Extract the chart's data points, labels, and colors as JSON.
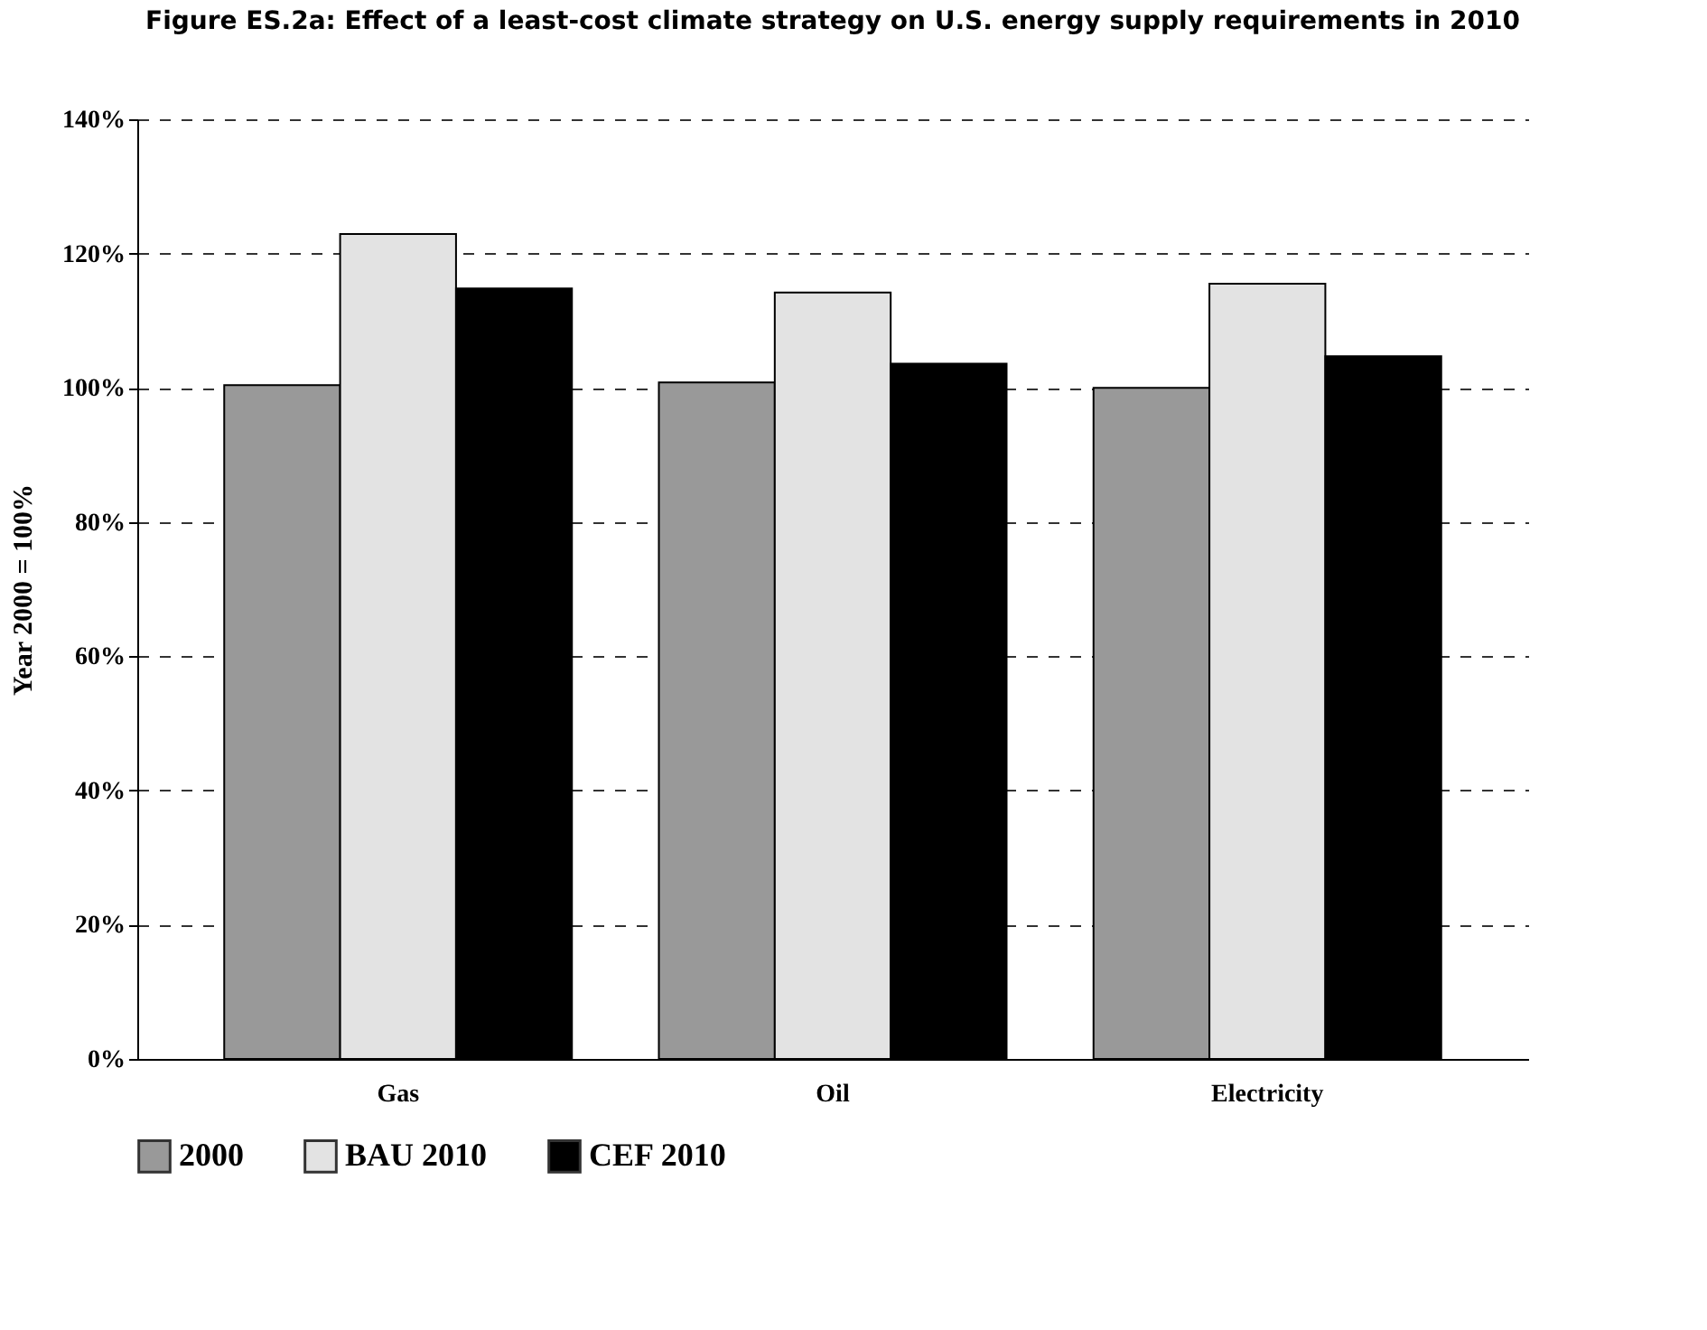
{
  "chart_data": {
    "type": "bar",
    "title": "Figure ES.2a:  Effect of a least-cost climate strategy on U.S. energy supply requirements in 2010",
    "ylabel": "Year 2000 = 100%",
    "categories": [
      "Gas",
      "Oil",
      "Electricity"
    ],
    "series": [
      {
        "name": "2000",
        "color": "#999999",
        "values": [
          100.4,
          100.8,
          100
        ]
      },
      {
        "name": "BAU 2010",
        "color": "#e3e3e3",
        "values": [
          122.9,
          114.2,
          115.5
        ]
      },
      {
        "name": "CEF 2010",
        "color": "#000000",
        "values": [
          114.8,
          103.6,
          104.7
        ]
      }
    ],
    "ylim": [
      0,
      140
    ],
    "yticks": [
      {
        "value": 0,
        "label": "0%"
      },
      {
        "value": 20,
        "label": "20%"
      },
      {
        "value": 40,
        "label": "40%"
      },
      {
        "value": 60,
        "label": "60%"
      },
      {
        "value": 80,
        "label": "80%"
      },
      {
        "value": 100,
        "label": "100%"
      },
      {
        "value": 120,
        "label": "120%"
      },
      {
        "value": 140,
        "label": "140%"
      }
    ],
    "grid": "y",
    "legend": "bottom"
  }
}
